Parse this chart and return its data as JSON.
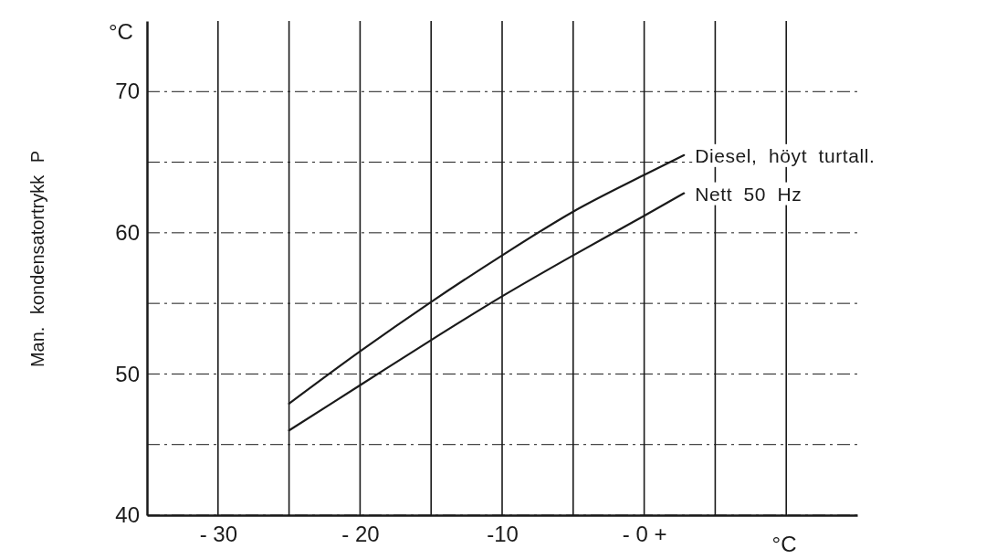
{
  "chart_data": {
    "type": "line",
    "xlabel": "°C",
    "ylabel": "Man. kondensatortrykk P",
    "annotations": [
      "°C"
    ],
    "xlim": [
      -35,
      15
    ],
    "ylim": [
      40,
      75
    ],
    "xticks": [
      {
        "value": -30,
        "label": "- 30"
      },
      {
        "value": -25,
        "label": null
      },
      {
        "value": -20,
        "label": "- 20"
      },
      {
        "value": -15,
        "label": null
      },
      {
        "value": -10,
        "label": "-10"
      },
      {
        "value": -5,
        "label": null
      },
      {
        "value": 0,
        "label": "- 0 +"
      },
      {
        "value": 5,
        "label": null
      },
      {
        "value": 10,
        "label": null
      }
    ],
    "yticks": [
      40,
      {
        "value": 45,
        "label": null
      },
      50,
      {
        "value": 55,
        "label": null
      },
      60,
      {
        "value": 65,
        "label": null
      },
      70
    ],
    "grid": true,
    "series": [
      {
        "name": "Diesel, höyt turtall.",
        "color": "#1a1a1a",
        "x": [
          -25,
          -20,
          -15,
          -10,
          -5,
          0,
          2.8
        ],
        "values": [
          47.9,
          51.6,
          55.1,
          58.4,
          61.5,
          64.1,
          65.5
        ]
      },
      {
        "name": "Nett 50 Hz",
        "color": "#1a1a1a",
        "x": [
          -25,
          -20,
          -15,
          -10,
          -5,
          0,
          2.8
        ],
        "values": [
          46.0,
          49.2,
          52.4,
          55.5,
          58.4,
          61.2,
          62.8
        ]
      }
    ]
  }
}
